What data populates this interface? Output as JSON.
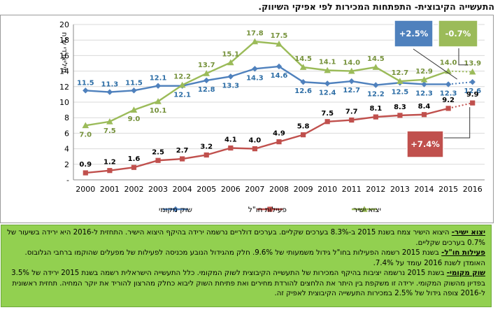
{
  "title": "התעשייה הקיבוצית- התפתחות המכירות לפי אפיקי השיווק.",
  "chart_data": {
    "type": "line",
    "ylabel": "מיליארדי ש\"ח",
    "ylim": [
      0,
      20
    ],
    "yticks": [
      0,
      2,
      4,
      6,
      8,
      10,
      12,
      14,
      16,
      18,
      20
    ],
    "ytick_labels": [
      "-",
      "2",
      "4",
      "6",
      "8",
      "10",
      "12",
      "14",
      "16",
      "18",
      "20"
    ],
    "categories": [
      "2000",
      "2001",
      "2002",
      "2003",
      "2004",
      "2005",
      "2006",
      "2007",
      "2008",
      "2009",
      "2010",
      "2011",
      "2012",
      "2013",
      "2014",
      "2015",
      "2016"
    ],
    "series": [
      {
        "name": "שוק מקומי",
        "color": "#4f81bd",
        "marker": "diamond",
        "values": [
          11.5,
          11.3,
          11.5,
          12.1,
          12.1,
          12.8,
          13.3,
          14.3,
          14.6,
          12.6,
          12.4,
          12.7,
          12.2,
          12.5,
          12.3,
          12.3,
          12.6
        ]
      },
      {
        "name": "פעילות חו\"ל",
        "color": "#c0504d",
        "marker": "square",
        "values": [
          0.9,
          1.2,
          1.6,
          2.5,
          2.7,
          3.2,
          4.1,
          4.0,
          4.9,
          5.8,
          7.5,
          7.7,
          8.1,
          8.3,
          8.4,
          9.2,
          9.9
        ]
      },
      {
        "name": "יצוא ישיר",
        "color": "#9bbb59",
        "marker": "triangle",
        "values": [
          7.0,
          7.5,
          9.0,
          10.1,
          12.2,
          13.7,
          15.1,
          17.8,
          17.5,
          14.5,
          14.1,
          14.0,
          14.5,
          12.7,
          12.9,
          14.0,
          13.9
        ]
      }
    ],
    "callouts": [
      {
        "text": "+2.5%",
        "series": "שוק מקומי",
        "color": "#4f81bd"
      },
      {
        "text": "-0.7%",
        "series": "יצוא ישיר",
        "color": "#9bbb59"
      },
      {
        "text": "+7.4%",
        "series": "פעילות חו\"ל",
        "color": "#c0504d"
      }
    ],
    "legend_position": "bottom"
  },
  "notes": [
    {
      "label": "יצוא ישיר-",
      "text": " היצוא הישיר צמח בשנת 2015 ב-8.3% בערכים שקליים. בערכים דולריים נרשמה ירידה בהיקף היצוא הישיר. התחזית ל-2016 היא ירידה בשיעור של 0.7% בערכים שקליים."
    },
    {
      "label": "פעילות חו\"ל-",
      "text": " בשנת 2015 רשמה הפעילות בחו\"ל גידול משמעותי של 9.6%. חלק מהגידול הנובע מכניסה לפעילות של מפעלים שהוקמו ברחבי הגלובוס. האומדן לשנת 2016 עומד על 7.4%."
    },
    {
      "label": "שוק מקומי-",
      "text": " בשנת 2015 נרשמה יציבות בהיקף המכירות של התעשייה הקיבוצית לשוק המקומי. כלל התעשייה הישראלית רשמה בשנת 2015 ירידה של 3.5% בפדיון מהשוק המקומי. ירידה זו משקפת בין היתר את הלחצים להורדת מחירים ואת פתיחת השוק ליבוא כחלק מהרצון להוריד את יוקר המחיה. תחזית ראשונית ל-2016 צופה גידול של 2.5% במכירות התעשייה הקיבוצית לאפיק זה."
    }
  ]
}
